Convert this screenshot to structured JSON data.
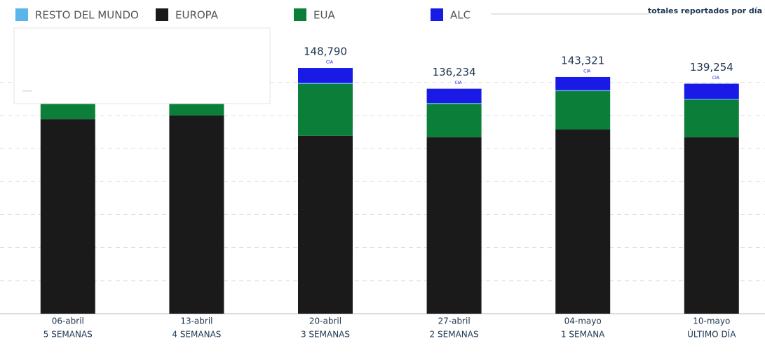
{
  "chart_data": {
    "type": "stacked_bar",
    "subtitle": "totales reportados por día",
    "categories": [
      "06-abril",
      "13-abril",
      "20-abril",
      "27-abril",
      "04-mayo",
      "10-mayo"
    ],
    "sublabels": [
      "5 SEMANAS",
      "4 SEMANAS",
      "3 SEMANAS",
      "2 SEMANAS",
      "1 SEMANA",
      "ÚLTIMO DÍA"
    ],
    "series": [
      {
        "name": "EUROPA",
        "color": "#1a1a1a",
        "values": [
          117800,
          120000,
          107800,
          106800,
          111500,
          106800
        ]
      },
      {
        "name": "EUA",
        "color": "#0b7f3a",
        "values": [
          25000,
          20000,
          31300,
          20300,
          23300,
          22700
        ]
      },
      {
        "name": "RESTO DEL MUNDO",
        "color": "#5bb5e8",
        "values": [
          null,
          null,
          600,
          500,
          500,
          500
        ]
      },
      {
        "name": "ALC",
        "color": "#1a1ae6",
        "values": [
          null,
          null,
          9090,
          8634,
          8021,
          9254
        ]
      }
    ],
    "totals": [
      null,
      null,
      148790,
      136234,
      143321,
      139254
    ],
    "total_labels": [
      null,
      null,
      "148,790",
      "136,234",
      "143,321",
      "139,254"
    ],
    "source_mark": "CIA",
    "ylim": [
      0,
      160000
    ],
    "yticks": [
      0,
      20000,
      40000,
      60000,
      80000,
      100000,
      120000,
      140000
    ],
    "grid": true
  }
}
